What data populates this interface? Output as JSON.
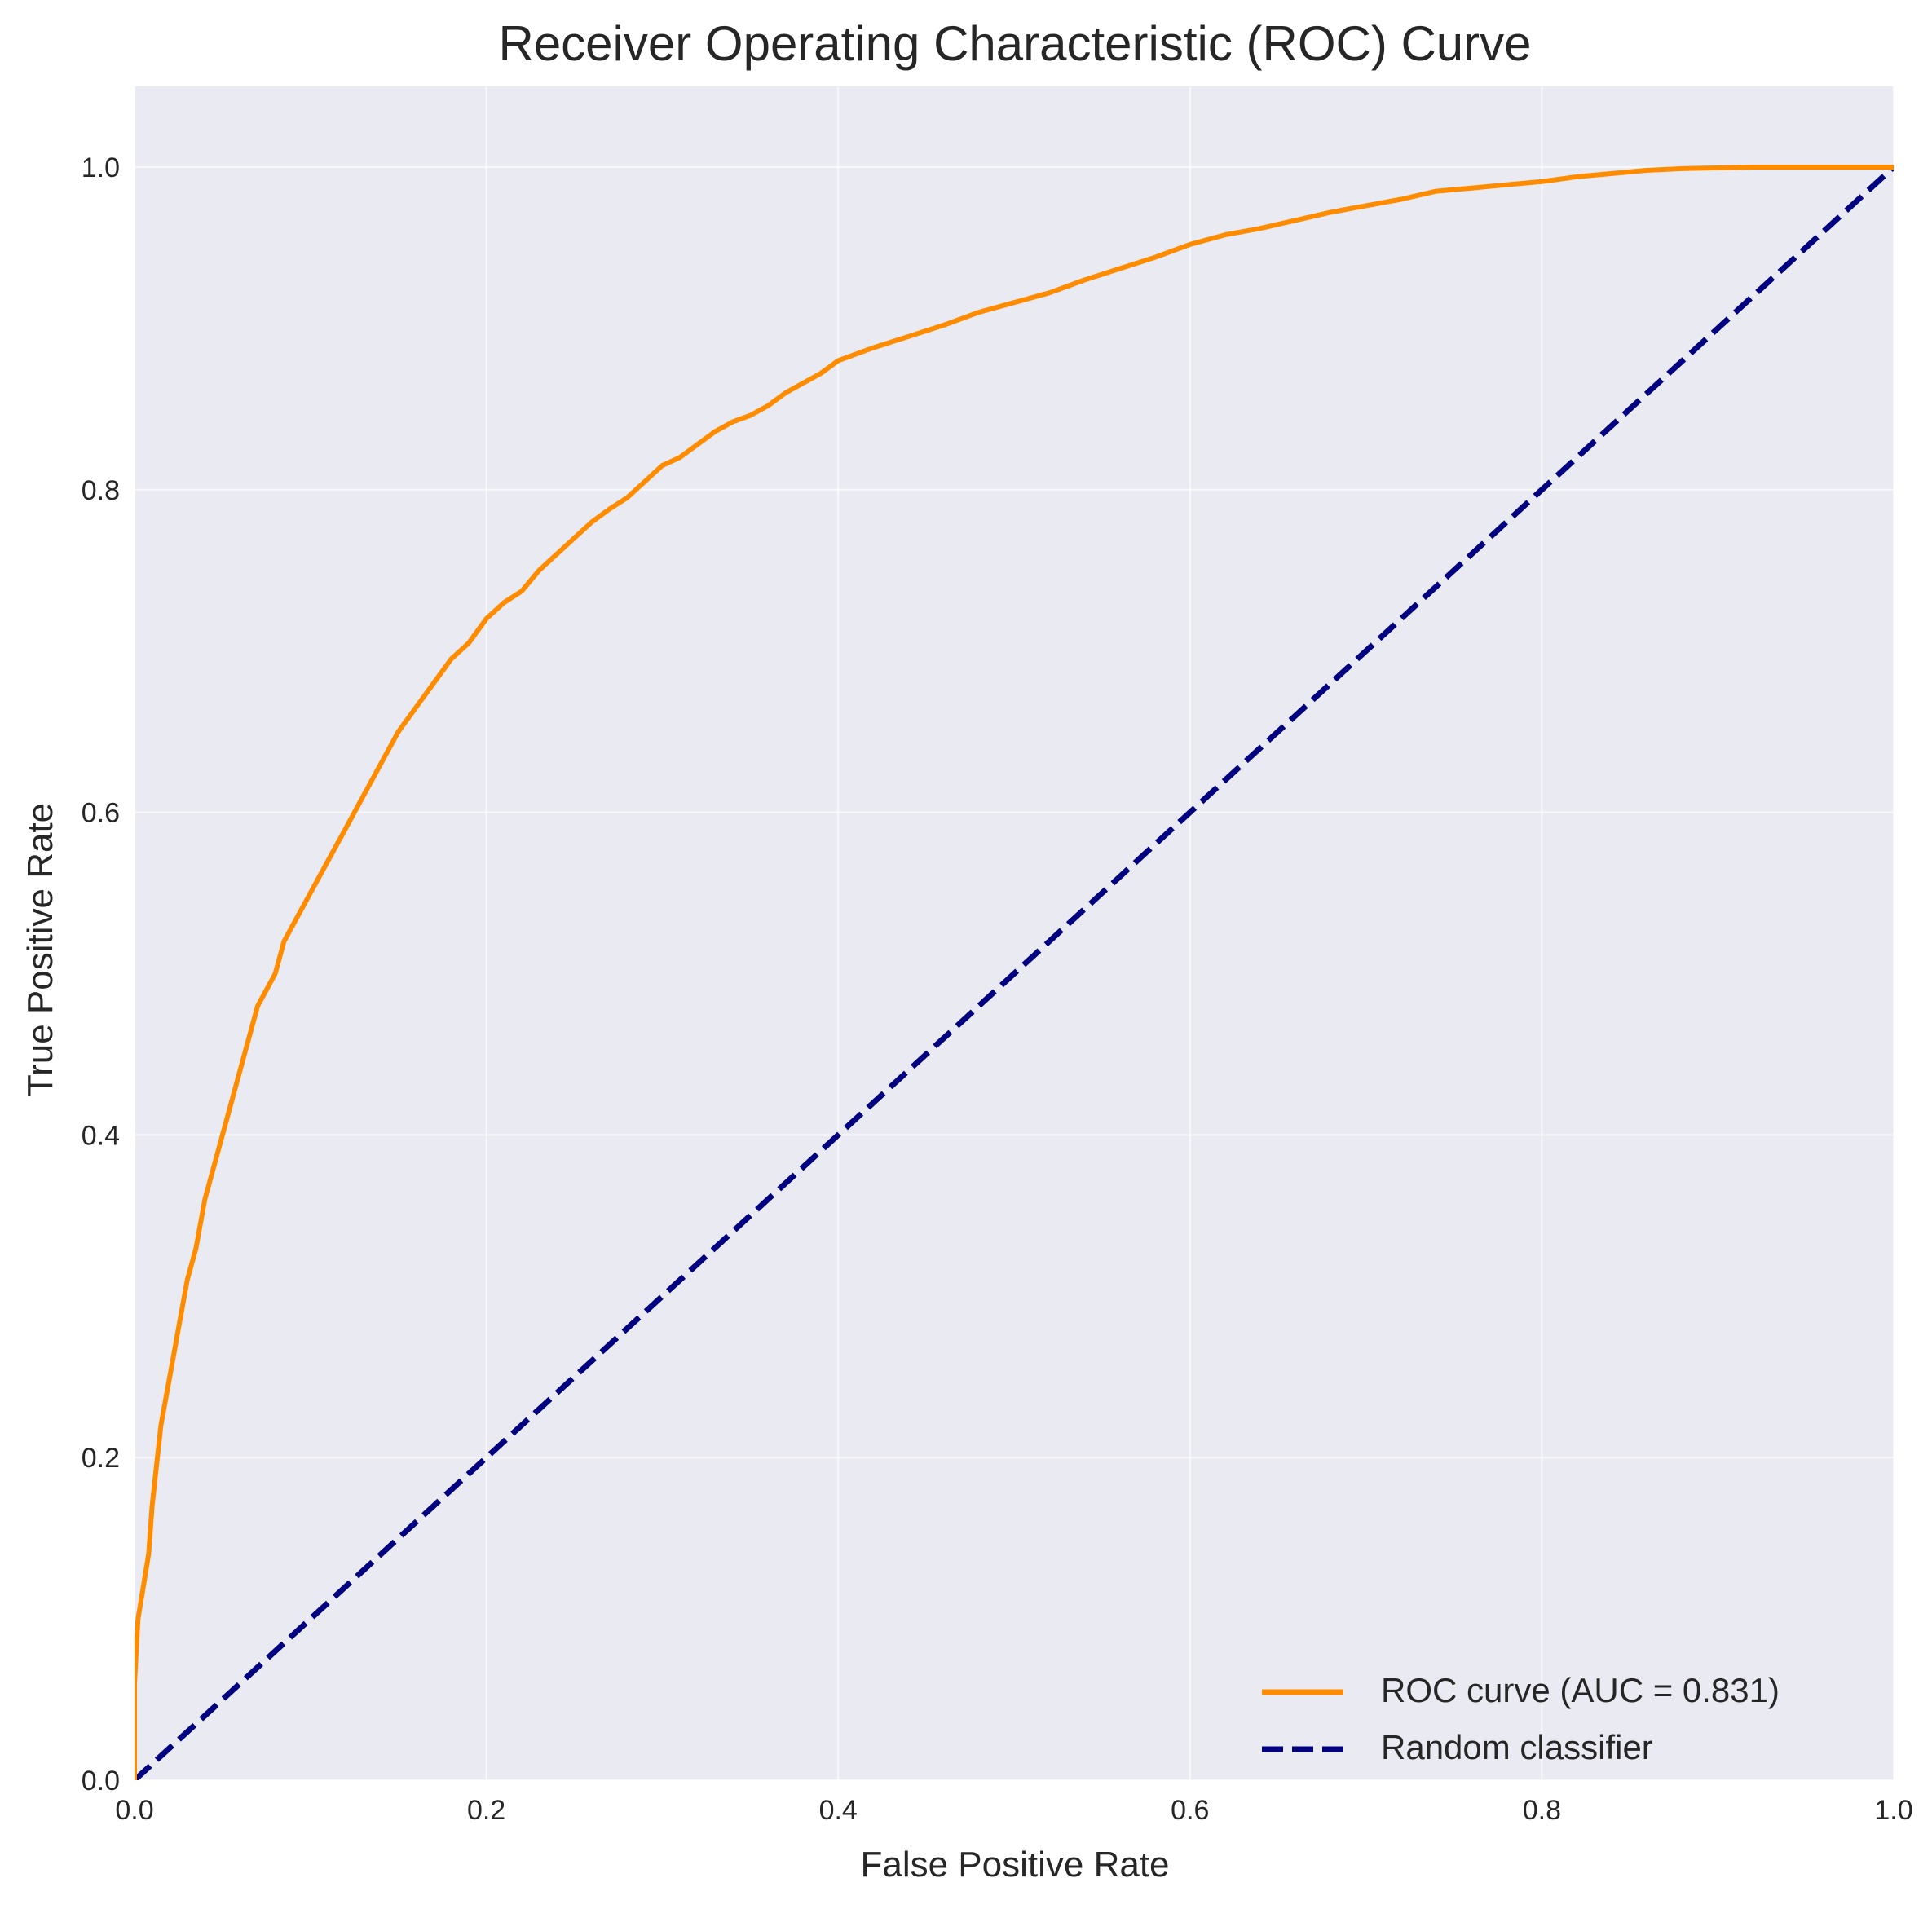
{
  "chart_data": {
    "type": "line",
    "title": "Receiver Operating Characteristic (ROC) Curve",
    "xlabel": "False Positive Rate",
    "ylabel": "True Positive Rate",
    "xlim": [
      0.0,
      1.0
    ],
    "ylim": [
      0.0,
      1.05
    ],
    "xticks": [
      0.0,
      0.2,
      0.4,
      0.6,
      0.8,
      1.0
    ],
    "yticks": [
      0.0,
      0.2,
      0.4,
      0.6,
      0.8,
      1.0
    ],
    "xtick_labels": [
      "0.0",
      "0.2",
      "0.4",
      "0.6",
      "0.8",
      "1.0"
    ],
    "ytick_labels": [
      "0.0",
      "0.2",
      "0.4",
      "0.6",
      "0.8",
      "1.0"
    ],
    "grid": true,
    "legend_position": "lower right",
    "series": [
      {
        "name": "ROC curve (AUC = 0.831)",
        "color": "#ff8c00",
        "style": "solid",
        "x": [
          0.0,
          0.0,
          0.002,
          0.005,
          0.008,
          0.01,
          0.013,
          0.015,
          0.02,
          0.025,
          0.03,
          0.035,
          0.04,
          0.045,
          0.05,
          0.055,
          0.06,
          0.065,
          0.07,
          0.075,
          0.08,
          0.085,
          0.09,
          0.1,
          0.11,
          0.12,
          0.13,
          0.14,
          0.15,
          0.16,
          0.17,
          0.18,
          0.19,
          0.2,
          0.21,
          0.22,
          0.23,
          0.24,
          0.25,
          0.26,
          0.27,
          0.28,
          0.29,
          0.3,
          0.31,
          0.32,
          0.33,
          0.34,
          0.35,
          0.36,
          0.37,
          0.38,
          0.39,
          0.4,
          0.42,
          0.44,
          0.46,
          0.48,
          0.5,
          0.52,
          0.54,
          0.56,
          0.58,
          0.6,
          0.62,
          0.64,
          0.66,
          0.68,
          0.7,
          0.72,
          0.74,
          0.76,
          0.78,
          0.8,
          0.82,
          0.84,
          0.86,
          0.88,
          0.9,
          0.92,
          0.95,
          1.0
        ],
        "y": [
          0.0,
          0.06,
          0.1,
          0.12,
          0.14,
          0.17,
          0.2,
          0.22,
          0.25,
          0.28,
          0.31,
          0.33,
          0.36,
          0.38,
          0.4,
          0.42,
          0.44,
          0.46,
          0.48,
          0.49,
          0.5,
          0.52,
          0.53,
          0.55,
          0.57,
          0.59,
          0.61,
          0.63,
          0.65,
          0.665,
          0.68,
          0.695,
          0.705,
          0.72,
          0.73,
          0.737,
          0.75,
          0.76,
          0.77,
          0.78,
          0.788,
          0.795,
          0.805,
          0.815,
          0.82,
          0.828,
          0.836,
          0.842,
          0.846,
          0.852,
          0.86,
          0.866,
          0.872,
          0.88,
          0.888,
          0.895,
          0.902,
          0.91,
          0.916,
          0.922,
          0.93,
          0.937,
          0.944,
          0.952,
          0.958,
          0.962,
          0.967,
          0.972,
          0.976,
          0.98,
          0.985,
          0.987,
          0.989,
          0.991,
          0.994,
          0.996,
          0.998,
          0.999,
          0.9995,
          1.0,
          1.0,
          1.0
        ]
      },
      {
        "name": "Random classifier",
        "color": "#000080",
        "style": "dashed",
        "x": [
          0.0,
          1.0
        ],
        "y": [
          0.0,
          1.0
        ]
      }
    ]
  }
}
